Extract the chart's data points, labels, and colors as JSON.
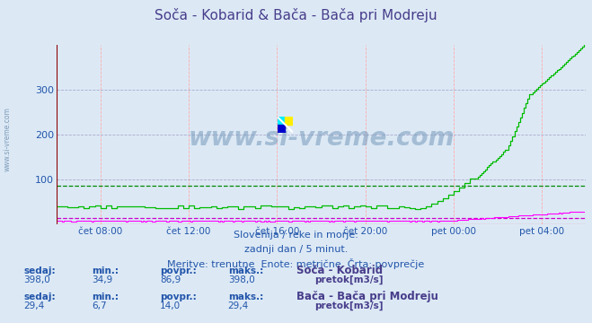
{
  "title": "Soča - Kobarid & Bača - Bača pri Modreju",
  "title_color": "#483D8B",
  "bg_color": "#dce9f5",
  "plot_bg_color": "#dce9f5",
  "grid_color_h": "#aaaacc",
  "grid_color_v": "#ffaaaa",
  "xlabel_color": "#2255aa",
  "ylabel_color": "#2255aa",
  "xlim": [
    0,
    288
  ],
  "ylim": [
    0,
    398
  ],
  "yticks": [
    100,
    200,
    300
  ],
  "xtick_labels": [
    "čet 08:00",
    "čet 12:00",
    "čet 16:00",
    "čet 20:00",
    "pet 00:00",
    "pet 04:00"
  ],
  "xtick_positions": [
    24,
    72,
    120,
    168,
    216,
    264
  ],
  "watermark": "www.si-vreme.com",
  "subtitle_line1": "Slovenija / reke in morje.",
  "subtitle_line2": "zadnji dan / 5 minut.",
  "subtitle_line3": "Meritve: trenutne  Enote: metrične  Črta: povprečje",
  "subtitle_color": "#2255aa",
  "left_label": "www.si-vreme.com",
  "color_green": "#00bb00",
  "color_magenta": "#ff00ff",
  "color_avg_green": "#008800",
  "color_avg_magenta": "#cc00cc",
  "avg_soca": 86.9,
  "avg_baca": 14.0,
  "stats_label_color": "#2255aa",
  "stats_value_color": "#2255aa",
  "stats1": {
    "sedaj": "398,0",
    "min": "34,9",
    "povpr": "86,9",
    "maks": "398,0",
    "label": "Soča - Kobarid",
    "unit": "pretok[m3/s]",
    "color": "#00cc00"
  },
  "stats2": {
    "sedaj": "29,4",
    "min": "6,7",
    "povpr": "14,0",
    "maks": "29,4",
    "label": "Bača - Bača pri Modreju",
    "unit": "pretok[m3/s]",
    "color": "#ff44ff"
  }
}
